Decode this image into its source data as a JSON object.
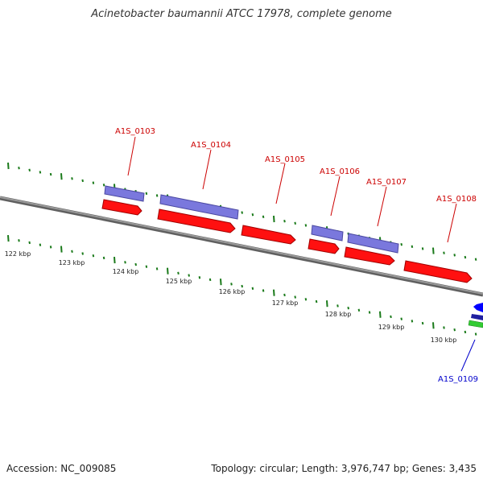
{
  "title": "Acinetobacter baumannii ATCC 17978, complete genome",
  "accession": "Accession: NC_009085",
  "summary": "Topology: circular; Length: 3,976,747 bp; Genes: 3,435",
  "colors": {
    "backbone": "#808080",
    "ticks": "#1a7a1a",
    "cds": "#ff0000",
    "gene": "#7070dd",
    "label_red": "#cc0000",
    "label_blue": "#0000cc",
    "blue_feature": "#0000ff",
    "green_feature": "#33cc33"
  },
  "ruler": {
    "labels": [
      "122 kbp",
      "123 kbp",
      "124 kbp",
      "125 kbp",
      "126 kbp",
      "127 kbp",
      "128 kbp",
      "129 kbp",
      "130 kbp"
    ]
  },
  "genes": [
    {
      "name": "A1S_0103",
      "color": "red"
    },
    {
      "name": "A1S_0104",
      "color": "red"
    },
    {
      "name": "A1S_0105",
      "color": "red"
    },
    {
      "name": "A1S_0106",
      "color": "red"
    },
    {
      "name": "A1S_0107",
      "color": "red"
    },
    {
      "name": "A1S_0108",
      "color": "red"
    },
    {
      "name": "A1S_0109",
      "color": "blue"
    }
  ]
}
